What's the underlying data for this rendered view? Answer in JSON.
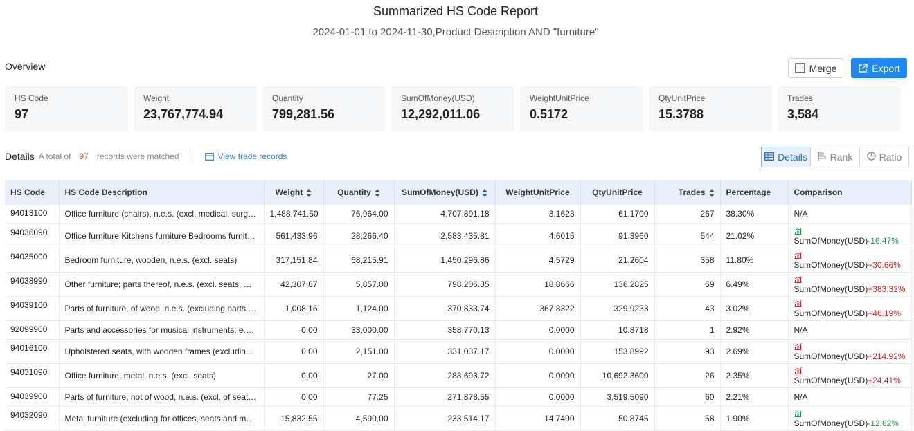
{
  "header": {
    "title": "Summarized HS Code Report",
    "subtitle": "2024-01-01 to 2024-11-30,Product Description AND \"furniture\""
  },
  "overview": {
    "label": "Overview",
    "buttons": [
      "Merge",
      "Export"
    ],
    "cards": [
      {
        "label": "HS Code",
        "value": "97"
      },
      {
        "label": "Weight",
        "value": "23,767,774.94"
      },
      {
        "label": "Quantity",
        "value": "799,281.56"
      },
      {
        "label": "SumOfMoney(USD)",
        "value": "12,292,011.06"
      },
      {
        "label": "WeightUnitPrice",
        "value": "0.5172"
      },
      {
        "label": "QtyUnitPrice",
        "value": "15.3788"
      },
      {
        "label": "Trades",
        "value": "3,584"
      }
    ]
  },
  "details": {
    "label": "Details",
    "count_prefix": "A total of",
    "count": "97",
    "count_suffix": "records were matched",
    "link": "View trade records",
    "tabs": [
      "Details",
      "Rank",
      "Ratio"
    ]
  },
  "table": {
    "columns": [
      "HS Code",
      "HS Code Description",
      "Weight",
      "Quantity",
      "SumOfMoney(USD)",
      "WeightUnitPrice",
      "QtyUnitPrice",
      "Trades",
      "Percentage",
      "Comparison"
    ],
    "rows": [
      [
        "94013100",
        "Office furniture (chairs), n.e.s. (excl. medical, surgical, dental or veterinary)",
        "1,488,741.50",
        "76,964.00",
        "4,707,891.18",
        "3.1623",
        "61.1700",
        "267",
        "38.30%",
        "N/A"
      ],
      [
        "94036090",
        "Office furniture Kitchens furniture Bedrooms furniture and other",
        "561,433.96",
        "28,266.40",
        "2,583,435.81",
        "4.6015",
        "91.3960",
        "544",
        "21.02%",
        {
          "metric": "SumOfMoney(USD)",
          "change": "-16.47%"
        }
      ],
      [
        "94035000",
        "Bedroom furniture, wooden, n.e.s. (excl. seats)",
        "317,151.84",
        "68,215.91",
        "1,450,296.86",
        "4.5729",
        "21.2604",
        "358",
        "11.80%",
        {
          "metric": "SumOfMoney(USD)",
          "change": "+30.66%"
        }
      ],
      [
        "94038990",
        "Other furniture; parts thereof, n.e.s. (excl. seats, musical instruments)",
        "42,307.87",
        "5,857.00",
        "798,206.85",
        "18.8666",
        "136.2825",
        "69",
        "6.49%",
        {
          "metric": "SumOfMoney(USD)",
          "change": "+383.32%"
        }
      ],
      [
        "94039100",
        "Parts of furniture, of wood, n.e.s. (excluding parts of seats)",
        "1,008.16",
        "1,124.00",
        "370,833.74",
        "367.8322",
        "329.9233",
        "43",
        "3.02%",
        {
          "metric": "SumOfMoney(USD)",
          "change": "+46.19%"
        }
      ],
      [
        "92099900",
        "Parts and accessories for musical instruments; e.g. metronomes",
        "0.00",
        "33,000.00",
        "358,770.13",
        "0.0000",
        "10.8718",
        "1",
        "2.92%",
        "N/A"
      ],
      [
        "94016100",
        "Upholstered seats, with wooden frames (excluding convertible seats)",
        "0.00",
        "2,151.00",
        "331,037.17",
        "0.0000",
        "153.8992",
        "93",
        "2.69%",
        {
          "metric": "SumOfMoney(USD)",
          "change": "+214.92%"
        }
      ],
      [
        "94031090",
        "Office furniture, metal, n.e.s. (excl. seats)",
        "0.00",
        "27.00",
        "288,693.72",
        "0.0000",
        "10,692.3600",
        "26",
        "2.35%",
        {
          "metric": "SumOfMoney(USD)",
          "change": "+24.41%"
        }
      ],
      [
        "94039900",
        "Parts of furniture, not of wood, n.e.s. (excl. of seats or medical)",
        "0.00",
        "77.25",
        "271,878.55",
        "0.0000",
        "3,519.5090",
        "60",
        "2.21%",
        "N/A"
      ],
      [
        "94032090",
        "Metal furniture (excluding for offices, seats and medical furniture)",
        "15,832.55",
        "4,590.00",
        "233,514.17",
        "14.7490",
        "50.8745",
        "58",
        "1.90%",
        {
          "metric": "SumOfMoney(USD)",
          "change": "-12.62%"
        }
      ]
    ]
  }
}
